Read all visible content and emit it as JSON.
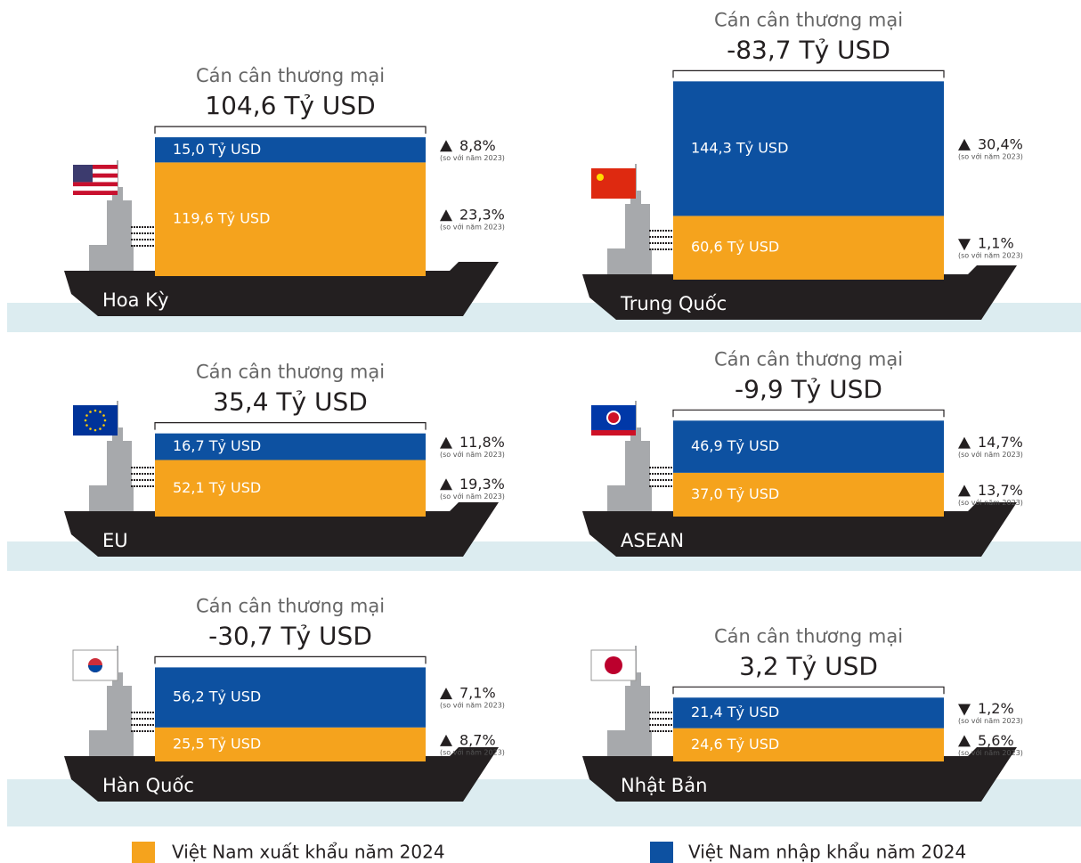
{
  "panels": [
    {
      "balance_label": "Cán cân thương mại",
      "balance": "104,6 Tỷ USD",
      "country": "Hoa Kỳ",
      "import": {
        "value": 15.0,
        "label": "15,0 Tỷ USD",
        "direction": "up",
        "change": "8,8%",
        "note": "(so với năm 2023)"
      },
      "export": {
        "value": 119.6,
        "label": "119,6 Tỷ USD",
        "direction": "up",
        "change": "23,3%",
        "note": "(so với năm 2023)"
      }
    },
    {
      "balance_label": "Cán cân thương mại",
      "balance": "-83,7 Tỷ USD",
      "country": "Trung Quốc",
      "import": {
        "value": 144.3,
        "label": "144,3 Tỷ USD",
        "direction": "up",
        "change": "30,4%",
        "note": "(so với năm 2023)"
      },
      "export": {
        "value": 60.6,
        "label": "60,6 Tỷ USD",
        "direction": "down",
        "change": "1,1%",
        "note": "(so với năm 2023)"
      }
    },
    {
      "balance_label": "Cán cân thương mại",
      "balance": "35,4 Tỷ USD",
      "country": "EU",
      "import": {
        "value": 16.7,
        "label": "16,7 Tỷ USD",
        "direction": "up",
        "change": "11,8%",
        "note": "(so với năm 2023)"
      },
      "export": {
        "value": 52.1,
        "label": "52,1 Tỷ USD",
        "direction": "up",
        "change": "19,3%",
        "note": "(so với năm 2023)"
      }
    },
    {
      "balance_label": "Cán cân thương mại",
      "balance": "-9,9 Tỷ USD",
      "country": "ASEAN",
      "import": {
        "value": 46.9,
        "label": "46,9 Tỷ USD",
        "direction": "up",
        "change": "14,7%",
        "note": "(so với năm 2023)"
      },
      "export": {
        "value": 37.0,
        "label": "37,0 Tỷ USD",
        "direction": "up",
        "change": "13,7%",
        "note": "(so với năm 2023)"
      }
    },
    {
      "balance_label": "Cán cân thương mại",
      "balance": "-30,7 Tỷ USD",
      "country": "Hàn Quốc",
      "import": {
        "value": 56.2,
        "label": "56,2 Tỷ USD",
        "direction": "up",
        "change": "7,1%",
        "note": "(so với năm 2023)"
      },
      "export": {
        "value": 25.5,
        "label": "25,5 Tỷ USD",
        "direction": "up",
        "change": "8,7%",
        "note": "(so với năm 2023)"
      }
    },
    {
      "balance_label": "Cán cân thương mại",
      "balance": "3,2 Tỷ USD",
      "country": "Nhật Bản",
      "import": {
        "value": 21.4,
        "label": "21,4 Tỷ USD",
        "direction": "down",
        "change": "1,2%",
        "note": "(so với năm 2023)"
      },
      "export": {
        "value": 24.6,
        "label": "24,6 Tỷ USD",
        "direction": "up",
        "change": "5,6%",
        "note": "(so với năm 2023)"
      }
    }
  ],
  "legend": [
    {
      "label": "Việt Nam xuất khẩu năm 2024",
      "color": "#f5a31d"
    },
    {
      "label": "Việt Nam nhập khẩu năm 2024",
      "color": "#0d51a1"
    }
  ]
}
